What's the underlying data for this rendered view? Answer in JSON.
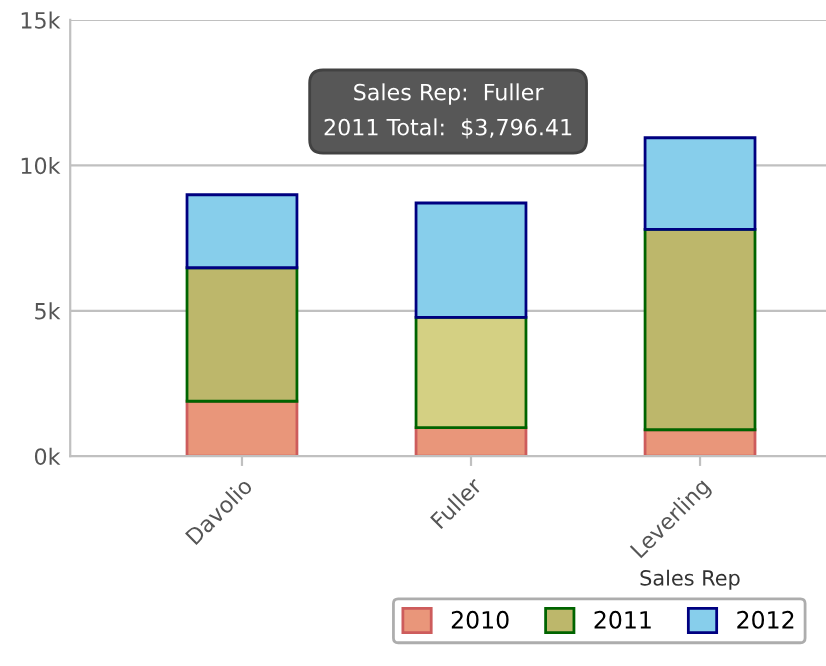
{
  "chart_data": {
    "type": "bar",
    "stacked": true,
    "categories": [
      "Davolio",
      "Fuller",
      "Leverling"
    ],
    "series": [
      {
        "name": "2010",
        "color": "#e9967a",
        "values": [
          1890,
          980,
          910
        ]
      },
      {
        "name": "2011",
        "color": "#bdb76b",
        "colors": [
          "#bdb76b",
          "#d4d083",
          "#bdb76b"
        ],
        "values": [
          4590,
          3796.41,
          6890
        ]
      },
      {
        "name": "2012",
        "color": "#87ceeb",
        "values": [
          2510,
          3930,
          3150
        ]
      }
    ],
    "xlabel": "Sales Rep",
    "ylim": [
      0,
      15000
    ],
    "yticks": [
      {
        "value": 0,
        "label": "0k"
      },
      {
        "value": 5000,
        "label": "5k"
      },
      {
        "value": 10000,
        "label": "10k"
      },
      {
        "value": 15000,
        "label": "15k"
      }
    ],
    "grid": "y",
    "legend": "bottom",
    "annotations": [
      "Sales Rep:  Fuller\n2011 Total:  $3,796.41"
    ]
  }
}
